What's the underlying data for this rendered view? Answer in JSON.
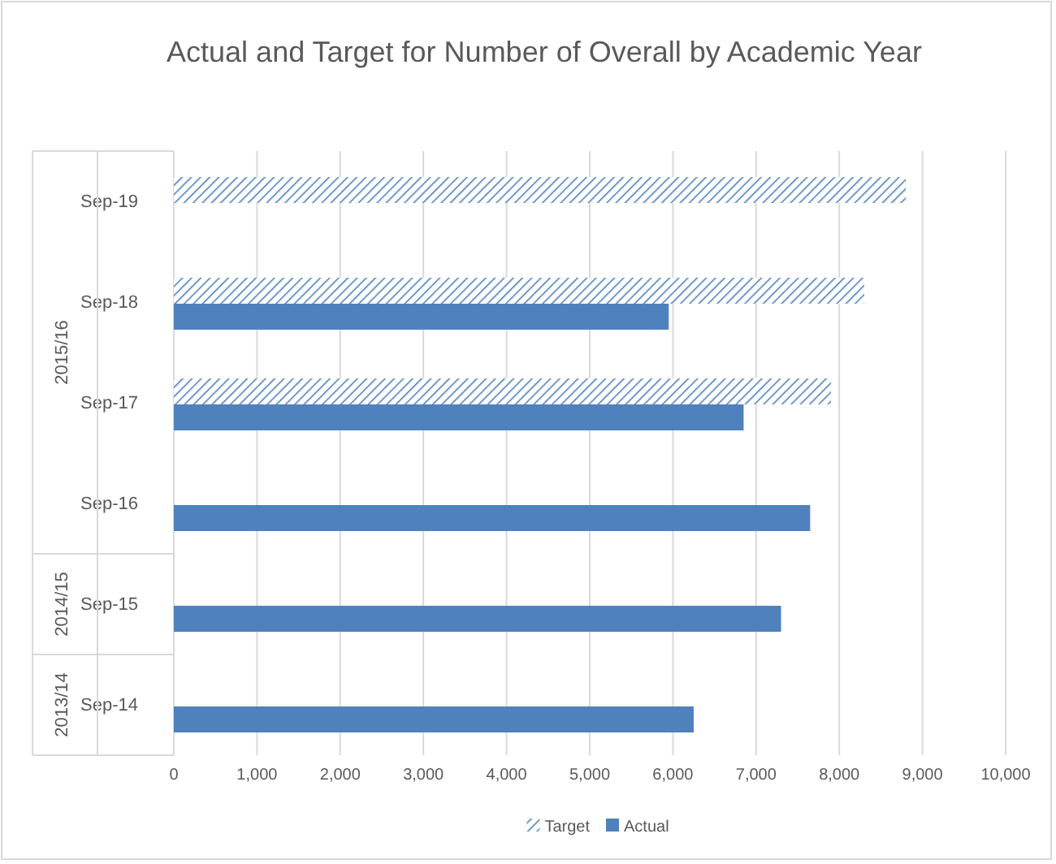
{
  "chart_data": {
    "type": "bar",
    "orientation": "horizontal",
    "title": "Actual and Target for Number of Overall by Academic Year",
    "categories": [
      "Sep-19",
      "Sep-18",
      "Sep-17",
      "Sep-16",
      "Sep-15",
      "Sep-14"
    ],
    "series": [
      {
        "name": "Target",
        "color": "#4f81bd",
        "values": [
          8800,
          8300,
          7900,
          null,
          null,
          null
        ]
      },
      {
        "name": "Actual",
        "color": "#4f81bd",
        "values": [
          null,
          5950,
          6850,
          7650,
          7300,
          6250
        ]
      }
    ],
    "xlim": [
      0,
      10000
    ],
    "xticks": [
      {
        "value": 0,
        "label": "0"
      },
      {
        "value": 1000,
        "label": "1,000"
      },
      {
        "value": 2000,
        "label": "2,000"
      },
      {
        "value": 3000,
        "label": "3,000"
      },
      {
        "value": 4000,
        "label": "4,000"
      },
      {
        "value": 5000,
        "label": "5,000"
      },
      {
        "value": 6000,
        "label": "6,000"
      },
      {
        "value": 7000,
        "label": "7,000"
      },
      {
        "value": 8000,
        "label": "8,000"
      },
      {
        "value": 9000,
        "label": "9,000"
      },
      {
        "value": 10000,
        "label": "10,000"
      }
    ],
    "annotations": [
      "2015/16",
      "2014/15",
      "2013/14"
    ],
    "grid": "x",
    "legend": "bottom"
  }
}
